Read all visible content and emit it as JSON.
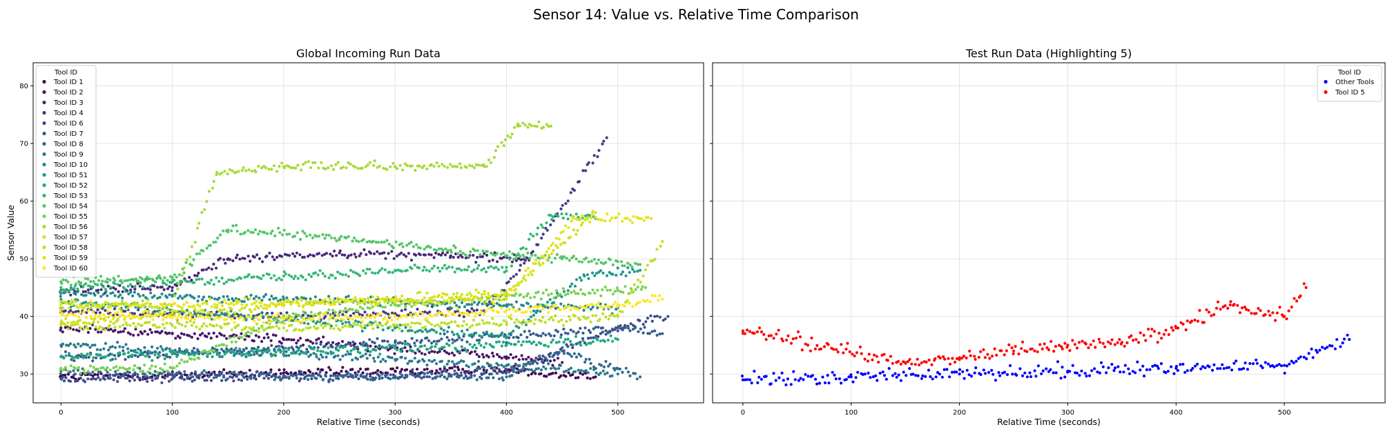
{
  "figure": {
    "title": "Sensor 14: Value vs. Relative Time Comparison"
  },
  "chart_data": [
    {
      "type": "scatter",
      "title": "Global Incoming Run Data",
      "xlabel": "Relative Time (seconds)",
      "ylabel": "Sensor Value",
      "xlim": [
        -25,
        577
      ],
      "ylim": [
        25,
        84
      ],
      "xticks": [
        0,
        100,
        200,
        300,
        400,
        500
      ],
      "yticks": [
        30,
        40,
        50,
        60,
        70,
        80
      ],
      "grid": true,
      "legend": {
        "title": "Tool ID",
        "placement": "top-left",
        "entries": [
          "Tool ID 1",
          "Tool ID 2",
          "Tool ID 3",
          "Tool ID 4",
          "Tool ID 6",
          "Tool ID 7",
          "Tool ID 8",
          "Tool ID 9",
          "Tool ID 10",
          "Tool ID 51",
          "Tool ID 52",
          "Tool ID 53",
          "Tool ID 54",
          "Tool ID 55",
          "Tool ID 56",
          "Tool ID 57",
          "Tool ID 58",
          "Tool ID 59",
          "Tool ID 60"
        ]
      },
      "series": [
        {
          "name": "Tool ID 1",
          "color": "#440154",
          "x": [
            0,
            100,
            200,
            300,
            400,
            480
          ],
          "y": [
            29.5,
            29.8,
            30.2,
            30.5,
            30.8,
            29.5
          ]
        },
        {
          "name": "Tool ID 2",
          "color": "#481668",
          "x": [
            0,
            100,
            200,
            300,
            400,
            450
          ],
          "y": [
            38.0,
            37.0,
            36.0,
            34.5,
            33.0,
            32.0
          ]
        },
        {
          "name": "Tool ID 3",
          "color": "#482878",
          "x": [
            0,
            100,
            150,
            250,
            350,
            420
          ],
          "y": [
            44.5,
            45.0,
            50.0,
            51.0,
            50.5,
            50.0
          ]
        },
        {
          "name": "Tool ID 4",
          "color": "#443983",
          "x": [
            0,
            100,
            200,
            300,
            380,
            420,
            490
          ],
          "y": [
            41.0,
            40.5,
            40.0,
            40.5,
            41.0,
            50.0,
            71.0
          ]
        },
        {
          "name": "Tool ID 6",
          "color": "#3e4a89",
          "x": [
            0,
            100,
            200,
            300,
            400,
            500,
            545
          ],
          "y": [
            29.2,
            29.2,
            29.4,
            29.6,
            30.5,
            38.0,
            40.0
          ]
        },
        {
          "name": "Tool ID 7",
          "color": "#375b8d",
          "x": [
            0,
            100,
            200,
            300,
            400,
            500,
            540
          ],
          "y": [
            33.0,
            33.5,
            34.5,
            35.5,
            36.5,
            38.0,
            37.0
          ]
        },
        {
          "name": "Tool ID 8",
          "color": "#31688e",
          "x": [
            0,
            100,
            200,
            300,
            400,
            450,
            520
          ],
          "y": [
            30.5,
            30.0,
            29.8,
            29.6,
            29.5,
            34.0,
            29.5
          ]
        },
        {
          "name": "Tool ID 9",
          "color": "#2a788e",
          "x": [
            0,
            100,
            200,
            300,
            400,
            500
          ],
          "y": [
            35.0,
            34.0,
            33.5,
            32.5,
            31.5,
            30.0
          ]
        },
        {
          "name": "Tool ID 10",
          "color": "#23888e",
          "x": [
            0,
            100,
            200,
            300,
            400,
            500
          ],
          "y": [
            44.0,
            43.5,
            43.0,
            42.5,
            42.0,
            41.5
          ]
        },
        {
          "name": "Tool ID 51",
          "color": "#1f988b",
          "x": [
            0,
            100,
            200,
            300,
            400,
            470,
            520
          ],
          "y": [
            42.5,
            41.0,
            39.5,
            38.0,
            36.5,
            47.0,
            48.0
          ]
        },
        {
          "name": "Tool ID 52",
          "color": "#22a884",
          "x": [
            0,
            100,
            200,
            300,
            400,
            500
          ],
          "y": [
            33.0,
            33.5,
            34.0,
            34.5,
            35.0,
            36.0
          ]
        },
        {
          "name": "Tool ID 53",
          "color": "#35b779",
          "x": [
            0,
            100,
            200,
            300,
            400,
            440,
            480
          ],
          "y": [
            45.0,
            46.0,
            47.0,
            48.0,
            48.5,
            57.5,
            57.0
          ]
        },
        {
          "name": "Tool ID 54",
          "color": "#54c568",
          "x": [
            0,
            100,
            150,
            250,
            350,
            450,
            520
          ],
          "y": [
            46.0,
            46.5,
            55.0,
            53.5,
            51.5,
            50.0,
            49.0
          ]
        },
        {
          "name": "Tool ID 55",
          "color": "#7ad151",
          "x": [
            0,
            100,
            200,
            300,
            400,
            500,
            525
          ],
          "y": [
            31.0,
            31.0,
            40.0,
            42.0,
            43.5,
            44.5,
            45.0
          ]
        },
        {
          "name": "Tool ID 56",
          "color": "#a5db36",
          "x": [
            0,
            100,
            140,
            200,
            300,
            380,
            410,
            440
          ],
          "y": [
            42.0,
            42.0,
            65.0,
            66.0,
            66.0,
            66.0,
            73.0,
            73.0
          ]
        },
        {
          "name": "Tool ID 57",
          "color": "#d2e21b",
          "x": [
            0,
            100,
            200,
            300,
            400,
            480
          ],
          "y": [
            39.0,
            40.5,
            42.0,
            43.0,
            44.0,
            58.0
          ]
        },
        {
          "name": "Tool ID 58",
          "color": "#bddf26",
          "x": [
            0,
            100,
            200,
            300,
            400,
            500,
            540
          ],
          "y": [
            38.5,
            38.5,
            38.0,
            38.5,
            39.0,
            40.0,
            53.0
          ]
        },
        {
          "name": "Tool ID 59",
          "color": "#e5e419",
          "x": [
            0,
            100,
            200,
            300,
            400,
            460,
            530
          ],
          "y": [
            42.0,
            42.0,
            42.5,
            42.5,
            43.0,
            57.0,
            57.0
          ]
        },
        {
          "name": "Tool ID 60",
          "color": "#fde725",
          "x": [
            0,
            100,
            200,
            300,
            400,
            500,
            540
          ],
          "y": [
            40.5,
            40.0,
            39.5,
            40.0,
            41.0,
            42.0,
            43.0
          ]
        }
      ]
    },
    {
      "type": "scatter",
      "title": "Test Run Data (Highlighting 5)",
      "xlabel": "Relative Time (seconds)",
      "ylabel": "",
      "xlim": [
        -28,
        593
      ],
      "ylim": [
        25,
        84
      ],
      "xticks": [
        0,
        100,
        200,
        300,
        400,
        500
      ],
      "yticks": [
        30,
        40,
        50,
        60,
        70,
        80
      ],
      "grid": true,
      "legend": {
        "title": "Tool ID",
        "placement": "top-right",
        "entries": [
          "Other Tools",
          "Tool ID 5"
        ]
      },
      "series": [
        {
          "name": "Other Tools",
          "color": "#0000ff",
          "x": [
            0,
            100,
            200,
            300,
            400,
            500,
            560
          ],
          "y": [
            29.0,
            29.5,
            30.0,
            30.5,
            31.0,
            31.5,
            36.0
          ]
        },
        {
          "name": "Tool ID 5",
          "color": "#ff0000",
          "x": [
            0,
            150,
            200,
            250,
            300,
            350,
            400,
            450,
            500,
            520
          ],
          "y": [
            37.5,
            32.0,
            32.5,
            34.0,
            35.0,
            35.5,
            38.0,
            42.0,
            40.0,
            45.0
          ]
        }
      ]
    }
  ]
}
